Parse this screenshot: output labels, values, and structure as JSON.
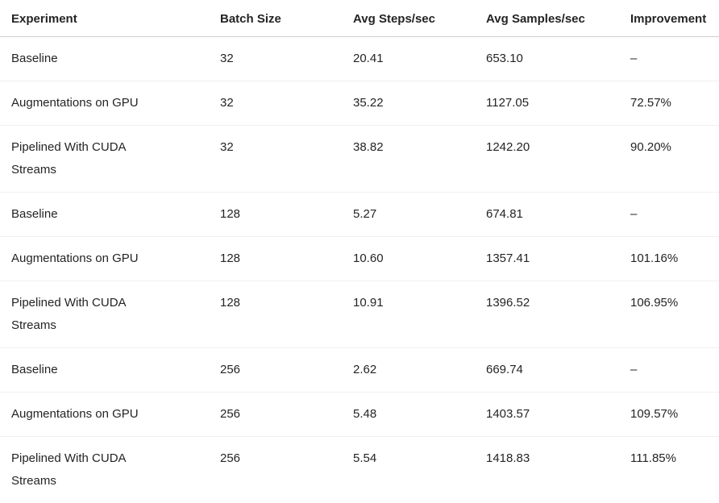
{
  "chart_data": {
    "type": "table",
    "title": "",
    "columns": [
      {
        "label": "Experiment"
      },
      {
        "label": "Batch Size"
      },
      {
        "label": "Avg Steps/sec"
      },
      {
        "label": "Avg Samples/sec"
      },
      {
        "label": "Improvement"
      }
    ],
    "rows": [
      [
        "Baseline",
        "32",
        "20.41",
        "653.10",
        "–"
      ],
      [
        "Augmentations on GPU",
        "32",
        "35.22",
        "1127.05",
        "72.57%"
      ],
      [
        "Pipelined With CUDA Streams",
        "32",
        "38.82",
        "1242.20",
        "90.20%"
      ],
      [
        "Baseline",
        "128",
        "5.27",
        "674.81",
        "–"
      ],
      [
        "Augmentations on GPU",
        "128",
        "10.60",
        "1357.41",
        "101.16%"
      ],
      [
        "Pipelined With CUDA Streams",
        "128",
        "10.91",
        "1396.52",
        "106.95%"
      ],
      [
        "Baseline",
        "256",
        "2.62",
        "669.74",
        "–"
      ],
      [
        "Augmentations on GPU",
        "256",
        "5.48",
        "1403.57",
        "109.57%"
      ],
      [
        "Pipelined With CUDA Streams",
        "256",
        "5.54",
        "1418.83",
        "111.85%"
      ]
    ]
  },
  "colors": {
    "text": "#242424",
    "header_border": "#cecece",
    "row_border": "#f0f0f0",
    "background": "#ffffff"
  }
}
